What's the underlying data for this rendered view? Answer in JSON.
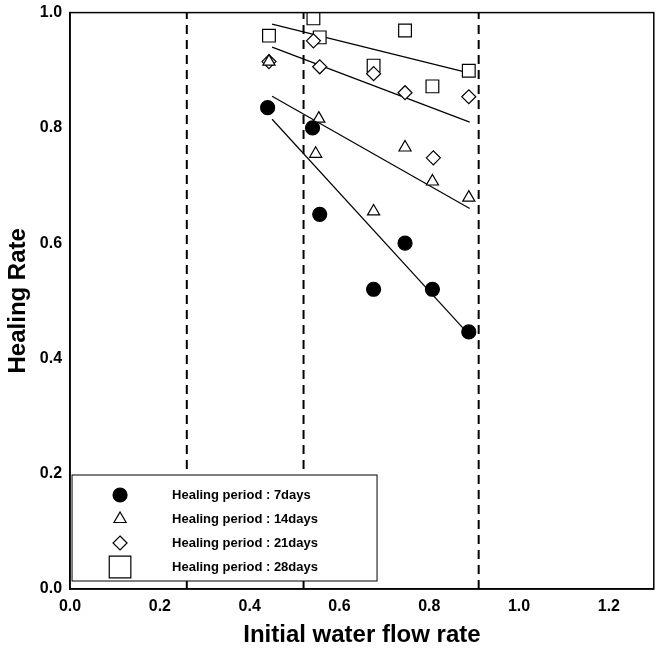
{
  "chart_data": {
    "type": "scatter",
    "x_label": "Initial water flow rate",
    "y_label": "Healing Rate",
    "xlim": [
      0,
      1.3
    ],
    "xticks": [
      {
        "value": 0,
        "label": "0.0"
      },
      0.2,
      0.4,
      0.6,
      0.8,
      {
        "value": 1,
        "label": "1.0"
      },
      {
        "value": 1.2,
        "label": "1.2"
      }
    ],
    "ylim": [
      0,
      1
    ],
    "yticks": [
      {
        "value": 0,
        "label": "0.0"
      },
      0.2,
      0.4,
      0.6,
      0.8,
      {
        "value": 1,
        "label": "1.0"
      }
    ],
    "grid": false,
    "legend": "lower left",
    "vlines": [
      0.26,
      0.52,
      0.91
    ],
    "series": [
      {
        "name": "Healing period : 7days",
        "color": "#000000",
        "marker": "circle",
        "x": [
          0.44,
          0.54,
          0.556,
          0.676,
          0.746,
          0.807,
          0.888
        ],
        "values": [
          0.835,
          0.8,
          0.65,
          0.52,
          0.6,
          0.52,
          0.446
        ],
        "trend_x": [
          0.45,
          0.89
        ],
        "trend_values": [
          0.815,
          0.44
        ]
      },
      {
        "name": "Healing period : 14days",
        "color": "#000000",
        "marker": "triangle-open",
        "x": [
          0.443,
          0.547,
          0.554,
          0.676,
          0.746,
          0.807,
          0.888
        ],
        "values": [
          0.915,
          0.755,
          0.816,
          0.655,
          0.766,
          0.707,
          0.679
        ],
        "trend_x": [
          0.45,
          0.89
        ],
        "trend_values": [
          0.855,
          0.66
        ]
      },
      {
        "name": "Healing period : 21days",
        "color": "#000000",
        "marker": "diamond-open",
        "x": [
          0.443,
          0.542,
          0.556,
          0.676,
          0.746,
          0.809,
          0.888
        ],
        "values": [
          0.915,
          0.951,
          0.906,
          0.894,
          0.861,
          0.748,
          0.854
        ],
        "trend_x": [
          0.45,
          0.89
        ],
        "trend_values": [
          0.94,
          0.81
        ]
      },
      {
        "name": "Healing period : 28days",
        "color": "#000000",
        "marker": "square-open",
        "x": [
          0.443,
          0.542,
          0.556,
          0.676,
          0.746,
          0.807,
          0.888
        ],
        "values": [
          0.96,
          0.99,
          0.957,
          0.908,
          0.969,
          0.872,
          0.899
        ],
        "trend_x": [
          0.45,
          0.89
        ],
        "trend_values": [
          0.98,
          0.895
        ]
      }
    ]
  }
}
